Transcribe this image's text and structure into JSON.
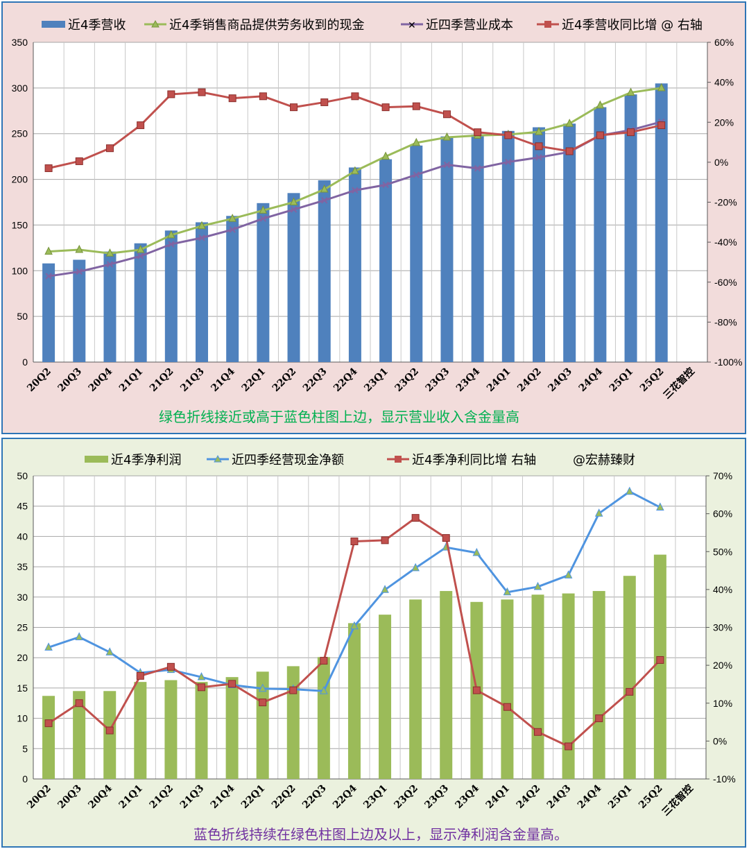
{
  "chart_data": [
    {
      "type": "bar",
      "title": "",
      "categories": [
        "20Q2",
        "20Q3",
        "20Q4",
        "21Q1",
        "21Q2",
        "21Q3",
        "21Q4",
        "22Q1",
        "22Q2",
        "22Q3",
        "22Q4",
        "23Q1",
        "23Q2",
        "23Q3",
        "23Q4",
        "24Q1",
        "24Q2",
        "24Q3",
        "24Q4",
        "25Q1",
        "25Q2"
      ],
      "extra_category": "三花智控",
      "ylim": [
        0,
        350
      ],
      "y_ticks": [
        0,
        50,
        100,
        150,
        200,
        250,
        300,
        350
      ],
      "y2lim": [
        -100,
        60
      ],
      "y2_ticks": [
        "-100%",
        "-80%",
        "-60%",
        "-40%",
        "-20%",
        "0%",
        "20%",
        "40%",
        "60%"
      ],
      "grid": true,
      "legend_position": "top",
      "series": [
        {
          "name": "近4季营收",
          "kind": "bar",
          "axis": "left",
          "color": "#4f81bd",
          "values": [
            108,
            112,
            121,
            130,
            144,
            153,
            160,
            174,
            185,
            199,
            213,
            222,
            237,
            247,
            249,
            253,
            257,
            261,
            279,
            293,
            305
          ]
        },
        {
          "name": "近4季销售商品提供劳务收到的现金",
          "kind": "line",
          "marker": "triangle",
          "axis": "left",
          "color": "#9bbb59",
          "values": [
            121,
            123,
            119,
            123,
            139,
            149,
            157,
            166,
            175,
            189,
            209,
            225,
            240,
            246,
            248,
            249,
            252,
            261,
            281,
            295,
            300
          ]
        },
        {
          "name": "近四季营业成本",
          "kind": "line",
          "marker": "x",
          "axis": "left",
          "color": "#8064a2",
          "values": [
            94,
            99,
            107,
            116,
            129,
            136,
            145,
            157,
            167,
            177,
            188,
            194,
            205,
            216,
            212,
            219,
            224,
            230,
            248,
            254,
            263
          ]
        },
        {
          "name": "近4季营收同比增 @ 右轴",
          "kind": "line",
          "marker": "square",
          "axis": "right",
          "color": "#c0504d",
          "values": [
            -3,
            0.5,
            7,
            18.5,
            34,
            35,
            32,
            33,
            27.5,
            30,
            33,
            27.5,
            28,
            24,
            15,
            13.5,
            8,
            5.5,
            13.5,
            15,
            18.5
          ]
        }
      ],
      "note": "绿色折线接近或高于蓝色柱图上边，显示营业收入含金量高"
    },
    {
      "type": "bar",
      "title": "",
      "categories": [
        "20Q2",
        "20Q3",
        "20Q4",
        "21Q1",
        "21Q2",
        "21Q3",
        "21Q4",
        "22Q1",
        "22Q2",
        "22Q3",
        "22Q4",
        "23Q1",
        "23Q2",
        "23Q3",
        "23Q4",
        "24Q1",
        "24Q2",
        "24Q3",
        "24Q4",
        "25Q1",
        "25Q2"
      ],
      "extra_category": "三花智控",
      "ylim": [
        0,
        50
      ],
      "y_ticks": [
        0,
        5,
        10,
        15,
        20,
        25,
        30,
        35,
        40,
        45,
        50
      ],
      "y2lim": [
        -10,
        70
      ],
      "y2_ticks": [
        "-10%",
        "0%",
        "10%",
        "20%",
        "30%",
        "40%",
        "50%",
        "60%",
        "70%"
      ],
      "grid": true,
      "legend_position": "top",
      "series": [
        {
          "name": "近4季净利润",
          "kind": "bar",
          "axis": "left",
          "color": "#9bbb59",
          "values": [
            13.7,
            14.5,
            14.5,
            16,
            16.3,
            16,
            16.8,
            17.7,
            18.6,
            20.1,
            25.7,
            27.1,
            29.6,
            31,
            29.2,
            29.6,
            30.4,
            30.6,
            31,
            33.5,
            37
          ]
        },
        {
          "name": "近四季经营现金净额",
          "kind": "line",
          "marker": "triangle",
          "axis": "left",
          "color": "#4f94e0",
          "values": [
            21.7,
            23.4,
            20.9,
            17.5,
            18,
            16.8,
            15.5,
            14.9,
            14.8,
            14.5,
            25.2,
            31.2,
            34.8,
            38.2,
            37.3,
            30.8,
            31.7,
            33.6,
            43.8,
            47.4,
            44.8
          ]
        },
        {
          "name": "近4季净利同比增 右轴",
          "kind": "line",
          "marker": "square",
          "axis": "right",
          "color": "#c0504d",
          "values": [
            4.7,
            10,
            2.8,
            17.2,
            19.6,
            14.2,
            15.1,
            10.2,
            13.4,
            21.2,
            52.7,
            53,
            58.9,
            53.6,
            13.4,
            9,
            2.4,
            -1.4,
            6,
            13,
            21.4
          ]
        }
      ],
      "extra_legend": "@宏赫臻财",
      "note": "蓝色折线持续在绿色柱图上边及以上，显示净利润含金量高。"
    }
  ],
  "colors": {
    "note_top": "#00b050",
    "note_bottom": "#7030a0",
    "border": "#2e75b6",
    "top_bg": "#f2dcdb",
    "bottom_bg": "#ebf1de",
    "plot_bg": "#ffffff"
  }
}
